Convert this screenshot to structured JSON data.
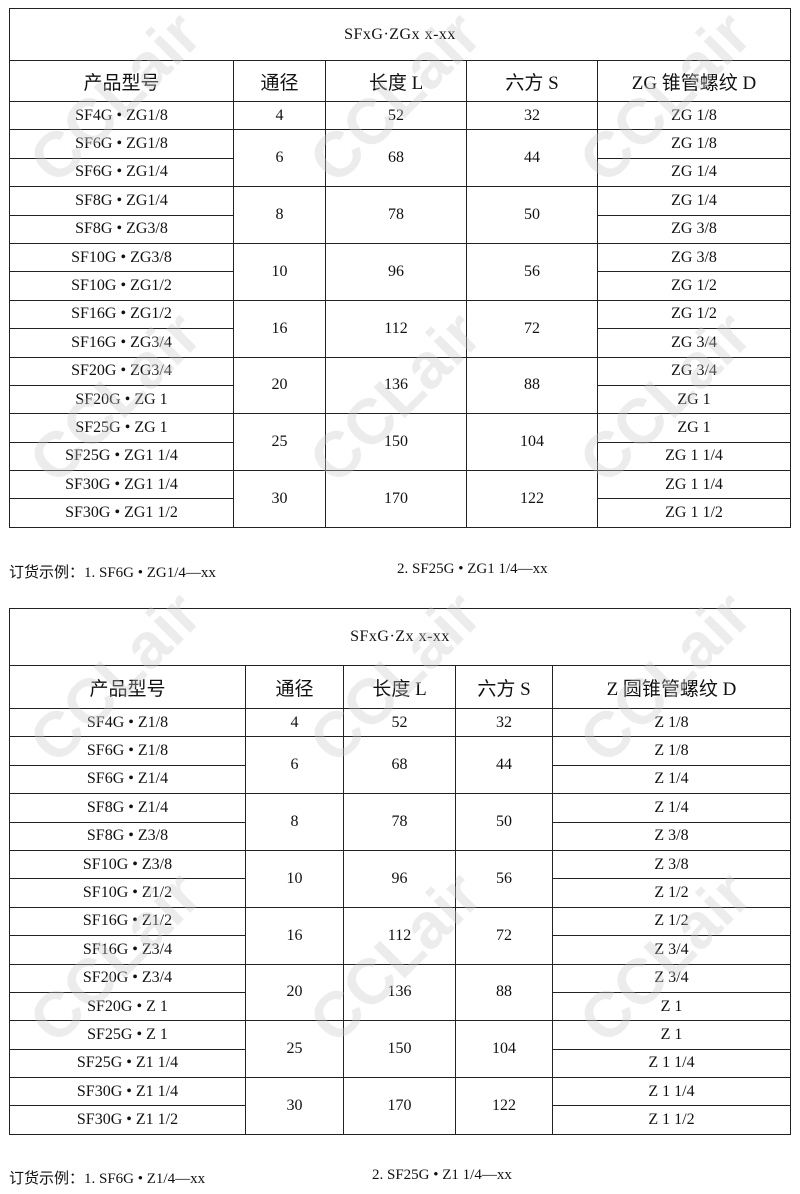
{
  "watermark": "CCLair",
  "tables": [
    {
      "title": "SFxG·ZGx x-xx",
      "headers": [
        "产品型号",
        "通径",
        "长度 L",
        "六方 S",
        "ZG 锥管螺纹 D"
      ],
      "groups": [
        {
          "bore": "4",
          "length": "52",
          "hex": "32",
          "rows": [
            {
              "model": "SF4G • ZG1/8",
              "thread": "ZG 1/8"
            }
          ]
        },
        {
          "bore": "6",
          "length": "68",
          "hex": "44",
          "rows": [
            {
              "model": "SF6G • ZG1/8",
              "thread": "ZG 1/8"
            },
            {
              "model": "SF6G • ZG1/4",
              "thread": "ZG 1/4"
            }
          ]
        },
        {
          "bore": "8",
          "length": "78",
          "hex": "50",
          "rows": [
            {
              "model": "SF8G • ZG1/4",
              "thread": "ZG 1/4"
            },
            {
              "model": "SF8G • ZG3/8",
              "thread": "ZG 3/8"
            }
          ]
        },
        {
          "bore": "10",
          "length": "96",
          "hex": "56",
          "rows": [
            {
              "model": "SF10G • ZG3/8",
              "thread": "ZG 3/8"
            },
            {
              "model": "SF10G • ZG1/2",
              "thread": "ZG 1/2"
            }
          ]
        },
        {
          "bore": "16",
          "length": "112",
          "hex": "72",
          "rows": [
            {
              "model": "SF16G • ZG1/2",
              "thread": "ZG 1/2"
            },
            {
              "model": "SF16G • ZG3/4",
              "thread": "ZG 3/4"
            }
          ]
        },
        {
          "bore": "20",
          "length": "136",
          "hex": "88",
          "rows": [
            {
              "model": "SF20G • ZG3/4",
              "thread": "ZG 3/4"
            },
            {
              "model": "SF20G • ZG 1",
              "thread": "ZG 1"
            }
          ]
        },
        {
          "bore": "25",
          "length": "150",
          "hex": "104",
          "rows": [
            {
              "model": "SF25G • ZG 1",
              "thread": "ZG 1"
            },
            {
              "model": "SF25G • ZG1 1/4",
              "thread": "ZG 1 1/4"
            }
          ]
        },
        {
          "bore": "30",
          "length": "170",
          "hex": "122",
          "rows": [
            {
              "model": "SF30G • ZG1 1/4",
              "thread": "ZG 1 1/4"
            },
            {
              "model": "SF30G • ZG1 1/2",
              "thread": "ZG 1 1/2"
            }
          ]
        }
      ],
      "example_1": "订货示例：1. SF6G • ZG1/4—xx",
      "example_2": "2. SF25G • ZG1 1/4—xx"
    },
    {
      "title": "SFxG·Zx x-xx",
      "headers": [
        "产品型号",
        "通径",
        "长度 L",
        "六方 S",
        "Z 圆锥管螺纹 D"
      ],
      "groups": [
        {
          "bore": "4",
          "length": "52",
          "hex": "32",
          "rows": [
            {
              "model": "SF4G • Z1/8",
              "thread": "Z 1/8"
            }
          ]
        },
        {
          "bore": "6",
          "length": "68",
          "hex": "44",
          "rows": [
            {
              "model": "SF6G • Z1/8",
              "thread": "Z 1/8"
            },
            {
              "model": "SF6G • Z1/4",
              "thread": "Z 1/4"
            }
          ]
        },
        {
          "bore": "8",
          "length": "78",
          "hex": "50",
          "rows": [
            {
              "model": "SF8G • Z1/4",
              "thread": "Z 1/4"
            },
            {
              "model": "SF8G • Z3/8",
              "thread": "Z 3/8"
            }
          ]
        },
        {
          "bore": "10",
          "length": "96",
          "hex": "56",
          "rows": [
            {
              "model": "SF10G • Z3/8",
              "thread": "Z 3/8"
            },
            {
              "model": "SF10G • Z1/2",
              "thread": "Z 1/2"
            }
          ]
        },
        {
          "bore": "16",
          "length": "112",
          "hex": "72",
          "rows": [
            {
              "model": "SF16G • Z1/2",
              "thread": "Z 1/2"
            },
            {
              "model": "SF16G • Z3/4",
              "thread": "Z 3/4"
            }
          ]
        },
        {
          "bore": "20",
          "length": "136",
          "hex": "88",
          "rows": [
            {
              "model": "SF20G • Z3/4",
              "thread": "Z 3/4"
            },
            {
              "model": "SF20G • Z 1",
              "thread": "Z 1"
            }
          ]
        },
        {
          "bore": "25",
          "length": "150",
          "hex": "104",
          "rows": [
            {
              "model": "SF25G • Z 1",
              "thread": "Z 1"
            },
            {
              "model": "SF25G • Z1 1/4",
              "thread": "Z 1 1/4"
            }
          ]
        },
        {
          "bore": "30",
          "length": "170",
          "hex": "122",
          "rows": [
            {
              "model": "SF30G • Z1 1/4",
              "thread": "Z 1 1/4"
            },
            {
              "model": "SF30G • Z1 1/2",
              "thread": "Z 1 1/2"
            }
          ]
        }
      ],
      "example_1": "订货示例：1. SF6G • Z1/4—xx",
      "example_2": "2. SF25G • Z1 1/4—xx"
    }
  ]
}
